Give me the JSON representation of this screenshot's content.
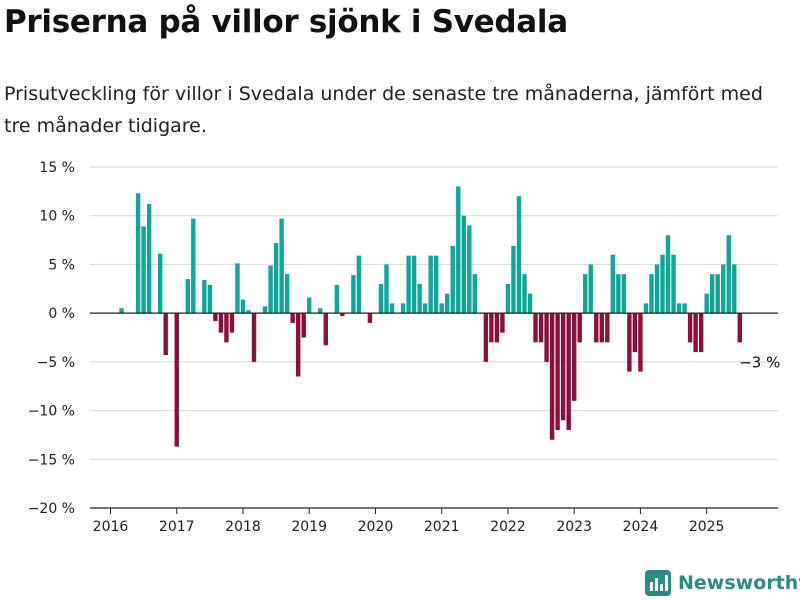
{
  "header": {
    "title": "Priserna på villor sjönk i Svedala",
    "subtitle": "Prisutveckling för villor i Svedala under de senaste tre månaderna, jämfört med tre månader tidigare."
  },
  "brand": {
    "name": "Newsworthy",
    "color": "#2b8c83"
  },
  "colors": {
    "positive": "#0ea79a",
    "negative": "#8d0f3e",
    "grid": "#d9d9d9",
    "axis": "#222222"
  },
  "chart_data": {
    "type": "bar",
    "title": "Priserna på villor sjönk i Svedala",
    "subtitle": "Prisutveckling för villor i Svedala under de senaste tre månaderna, jämfört med tre månader tidigare.",
    "xlabel": "",
    "ylabel": "",
    "ylim": [
      -20,
      15
    ],
    "yticks": [
      15,
      10,
      5,
      0,
      -5,
      -10,
      -15,
      -20
    ],
    "ytick_labels": [
      "15 %",
      "10 %",
      "5 %",
      "0 %",
      "−5 %",
      "−10 %",
      "−15 %",
      "−20 %"
    ],
    "xticks": [
      "2016",
      "2017",
      "2018",
      "2019",
      "2020",
      "2021",
      "2022",
      "2023",
      "2024",
      "2025"
    ],
    "start": "2016-01",
    "grid": true,
    "end_label": "−3 %",
    "values": [
      0,
      0,
      0.5,
      0,
      0,
      12.3,
      8.9,
      11.2,
      0,
      6.1,
      -4.3,
      0,
      -13.7,
      0,
      3.5,
      9.7,
      0,
      3.4,
      2.9,
      -0.8,
      -2,
      -3,
      -2,
      5.1,
      1.4,
      0.3,
      -5,
      0,
      0.7,
      4.9,
      7.2,
      9.7,
      4,
      -1,
      -6.5,
      -2.5,
      1.6,
      0,
      0.5,
      -3.3,
      0,
      2.9,
      -0.3,
      0,
      3.9,
      5.9,
      0,
      -1,
      0,
      3,
      5,
      1,
      0,
      1,
      5.9,
      5.9,
      3,
      1,
      5.9,
      5.9,
      1,
      2,
      6.9,
      13,
      10,
      9,
      4,
      0,
      -5,
      -3,
      -3,
      -2,
      3,
      6.9,
      12,
      4,
      2,
      -3,
      -3,
      -5,
      -13,
      -12,
      -11,
      -12,
      -9,
      -3,
      4,
      5,
      -3,
      -3,
      -3,
      6,
      4,
      4,
      -6,
      -4,
      -6,
      1,
      4,
      5,
      6,
      8,
      6,
      1,
      1,
      -3,
      -4,
      -4,
      2,
      4,
      4,
      5,
      8,
      5,
      -3
    ]
  }
}
